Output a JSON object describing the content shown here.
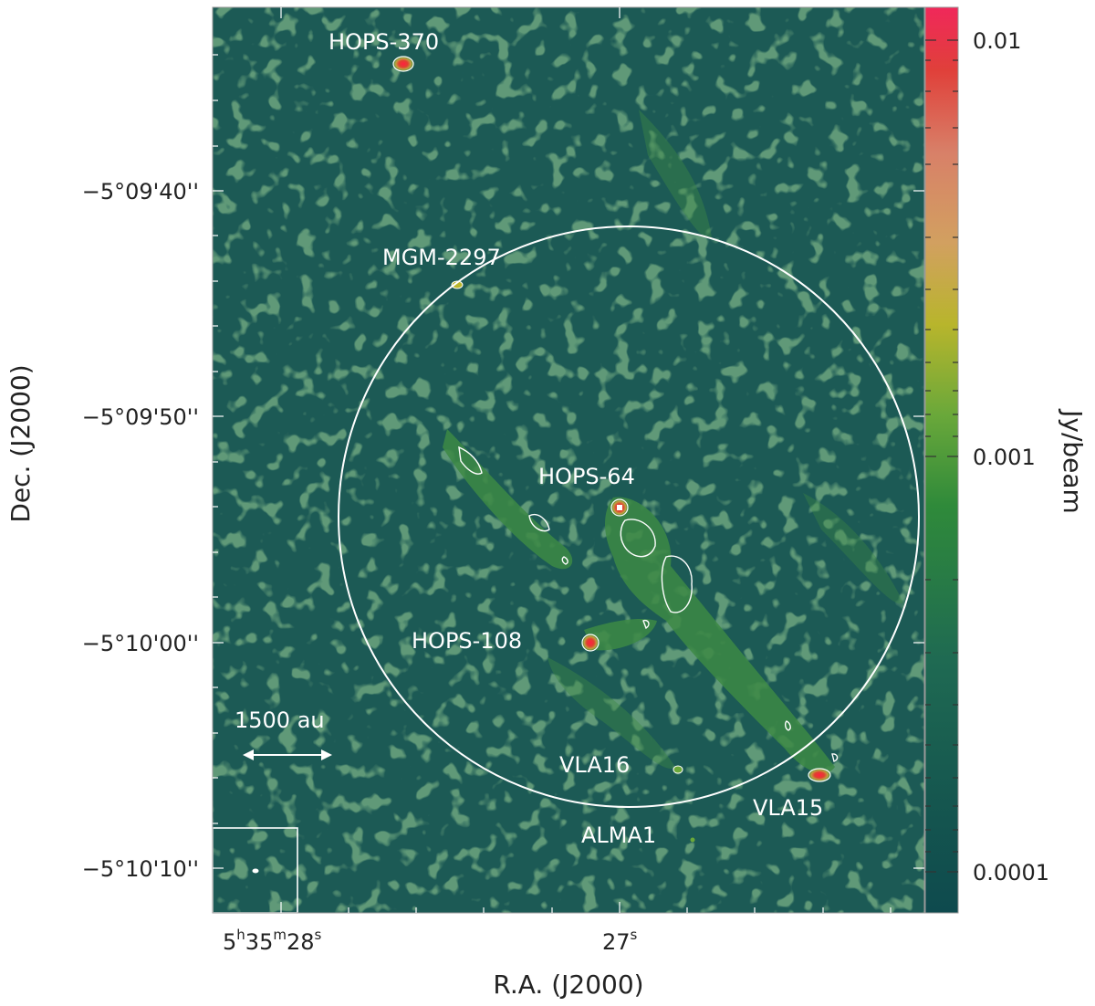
{
  "figure": {
    "sources": [
      {
        "id": "hops370",
        "label": "HOPS-370"
      },
      {
        "id": "mgm2297",
        "label": "MGM-2297"
      },
      {
        "id": "hops64",
        "label": "HOPS-64"
      },
      {
        "id": "hops108",
        "label": "HOPS-108"
      },
      {
        "id": "vla16",
        "label": "VLA16"
      },
      {
        "id": "vla15",
        "label": "VLA15"
      },
      {
        "id": "alma1",
        "label": "ALMA1"
      }
    ],
    "scalebar_label": "1500 au",
    "y_axis": {
      "title": "Dec. (J2000)",
      "ticks": [
        "−5°09'40''",
        "−5°09'50''",
        "−5°10'00''",
        "−5°10'10''"
      ]
    },
    "x_axis": {
      "title": "R.A. (J2000)",
      "ticks": [
        {
          "main": "5",
          "h": "h",
          "m1": "35",
          "msup": "m",
          "s1": "28",
          "ssup": "s"
        },
        {
          "main": "27",
          "ssup": "s"
        }
      ]
    },
    "colorbar": {
      "title": "Jy/beam",
      "ticks": [
        "0.01",
        "0.001",
        "0.0001"
      ],
      "colors": [
        "#0e4a4e",
        "#1f6a52",
        "#2f8a3a",
        "#6aa83a",
        "#b8b52c",
        "#d2a060",
        "#d88068",
        "#e0403a",
        "#e8183a",
        "#f0285a"
      ]
    }
  }
}
